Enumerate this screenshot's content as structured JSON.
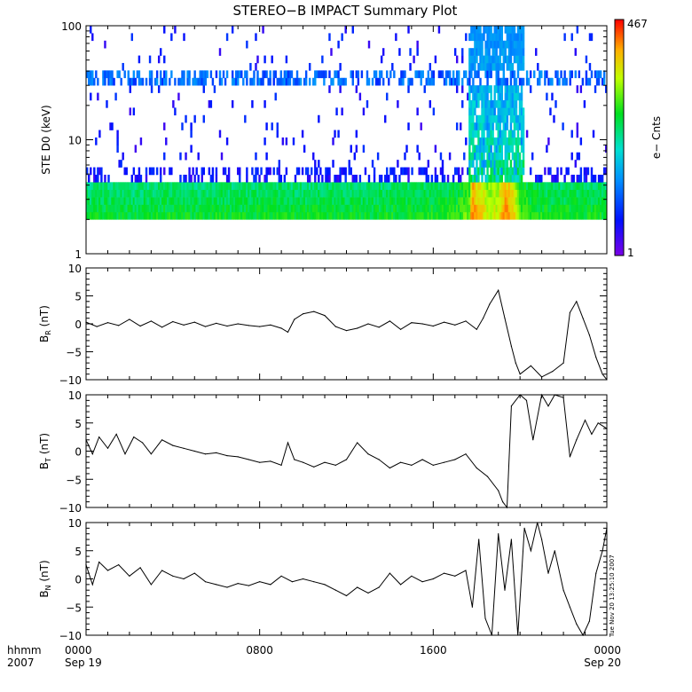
{
  "title": "STEREO−B IMPACT Summary Plot",
  "timestamp": "Tue Nov 20 13:25:10 2007",
  "colors": {
    "trace": "#000000",
    "axis": "#000000",
    "background": "#ffffff"
  },
  "chart_data": [
    {
      "type": "heatmap",
      "name": "electron-spectrogram",
      "ylabel": "STE D0 (keV)",
      "yscale": "log",
      "ylim": [
        1,
        100
      ],
      "yticks": [
        1,
        10,
        100
      ],
      "ytick_labels": [
        "1",
        "10",
        "100"
      ],
      "energy_range": [
        2,
        100
      ],
      "xlim": [
        0,
        24
      ],
      "colorbar": {
        "label": "e− Cnts",
        "min": 1,
        "max": 467,
        "min_label": "1",
        "max_label": "467"
      },
      "band_counts_low": [
        [
          0,
          35
        ],
        [
          1,
          38
        ],
        [
          2,
          36
        ],
        [
          3,
          38
        ],
        [
          4,
          40
        ],
        [
          5,
          37
        ],
        [
          6,
          40
        ],
        [
          7,
          38
        ],
        [
          8,
          39
        ],
        [
          9,
          40
        ],
        [
          10,
          38
        ],
        [
          11,
          40
        ],
        [
          12,
          39
        ],
        [
          13,
          37
        ],
        [
          14,
          40
        ],
        [
          15,
          40
        ],
        [
          16,
          42
        ],
        [
          17,
          44
        ],
        [
          17.7,
          70
        ],
        [
          17.8,
          330
        ],
        [
          18,
          200
        ],
        [
          18.5,
          110
        ],
        [
          19,
          120
        ],
        [
          19.3,
          250
        ],
        [
          19.5,
          230
        ],
        [
          20,
          60
        ],
        [
          20.5,
          45
        ],
        [
          21,
          42
        ],
        [
          22,
          40
        ],
        [
          23,
          42
        ],
        [
          24,
          40
        ]
      ]
    },
    {
      "type": "line",
      "name": "BR",
      "ylabel": "B_R (nT)",
      "ylabel_main": "B",
      "ylabel_sub": "R",
      "ylabel_unit": "(nT)",
      "ylim": [
        -10,
        10
      ],
      "yticks": [
        -10,
        -5,
        0,
        5,
        10
      ],
      "ytick_labels": [
        "−10",
        "−5",
        "0",
        "5",
        "10"
      ],
      "xlim": [
        0,
        24
      ],
      "x": [
        0,
        0.5,
        1,
        1.5,
        2,
        2.5,
        3,
        3.5,
        4,
        4.5,
        5,
        5.5,
        6,
        6.5,
        7,
        7.5,
        8,
        8.5,
        9,
        9.3,
        9.6,
        10,
        10.5,
        11,
        11.5,
        12,
        12.5,
        13,
        13.5,
        14,
        14.5,
        15,
        15.5,
        16,
        16.5,
        17,
        17.5,
        18,
        18.3,
        18.6,
        19,
        19.3,
        19.6,
        19.8,
        20,
        20.5,
        21,
        21.5,
        22,
        22.3,
        22.6,
        22.9,
        23.2,
        23.5,
        23.8,
        24
      ],
      "y": [
        0.3,
        -0.5,
        0.2,
        -0.3,
        0.8,
        -0.4,
        0.5,
        -0.6,
        0.4,
        -0.2,
        0.3,
        -0.5,
        0.1,
        -0.4,
        0.0,
        -0.3,
        -0.5,
        -0.2,
        -0.8,
        -1.5,
        0.8,
        1.8,
        2.2,
        1.5,
        -0.5,
        -1.2,
        -0.8,
        0.0,
        -0.6,
        0.5,
        -1.0,
        0.2,
        0.0,
        -0.4,
        0.3,
        -0.2,
        0.5,
        -1.0,
        1.0,
        3.5,
        6.0,
        1.0,
        -4.0,
        -7.0,
        -9.0,
        -7.5,
        -9.5,
        -8.5,
        -7.0,
        2.0,
        4.0,
        1.0,
        -2.0,
        -6.0,
        -9.0,
        -10.0
      ]
    },
    {
      "type": "line",
      "name": "BT",
      "ylabel": "B_T (nT)",
      "ylabel_main": "B",
      "ylabel_sub": "T",
      "ylabel_unit": "(nT)",
      "ylim": [
        -10,
        10
      ],
      "yticks": [
        -10,
        -5,
        0,
        5,
        10
      ],
      "ytick_labels": [
        "−10",
        "−5",
        "0",
        "5",
        "10"
      ],
      "xlim": [
        0,
        24
      ],
      "x": [
        0,
        0.3,
        0.6,
        1,
        1.4,
        1.8,
        2.2,
        2.6,
        3,
        3.5,
        4,
        4.5,
        5,
        5.5,
        6,
        6.5,
        7,
        7.5,
        8,
        8.5,
        9,
        9.3,
        9.6,
        10,
        10.5,
        11,
        11.5,
        12,
        12.5,
        13,
        13.5,
        14,
        14.5,
        15,
        15.5,
        16,
        16.5,
        17,
        17.5,
        18,
        18.5,
        19,
        19.2,
        19.4,
        19.6,
        20,
        20.3,
        20.6,
        21,
        21.3,
        21.6,
        22,
        22.3,
        22.6,
        23,
        23.3,
        23.6,
        24
      ],
      "y": [
        2.0,
        -0.5,
        2.5,
        0.5,
        3.0,
        -0.5,
        2.5,
        1.5,
        -0.5,
        2.0,
        1.0,
        0.5,
        0.0,
        -0.5,
        -0.3,
        -0.8,
        -1.0,
        -1.5,
        -2.0,
        -1.8,
        -2.5,
        1.5,
        -1.5,
        -2.0,
        -2.8,
        -2.0,
        -2.5,
        -1.5,
        1.5,
        -0.5,
        -1.5,
        -3.0,
        -2.0,
        -2.5,
        -1.5,
        -2.5,
        -2.0,
        -1.5,
        -0.5,
        -3.0,
        -4.5,
        -7.0,
        -9.0,
        -10.0,
        8.0,
        10.0,
        9.0,
        2.0,
        10.0,
        8.0,
        10.0,
        9.5,
        -1.0,
        2.0,
        5.5,
        3.0,
        5.0,
        4.0
      ]
    },
    {
      "type": "line",
      "name": "BN",
      "ylabel": "B_N (nT)",
      "ylabel_main": "B",
      "ylabel_sub": "N",
      "ylabel_unit": "(nT)",
      "ylim": [
        -10,
        10
      ],
      "yticks": [
        -10,
        -5,
        0,
        5,
        10
      ],
      "ytick_labels": [
        "−10",
        "−5",
        "0",
        "5",
        "10"
      ],
      "xlim": [
        0,
        24
      ],
      "x": [
        0,
        0.3,
        0.6,
        1,
        1.5,
        2,
        2.5,
        3,
        3.5,
        4,
        4.5,
        5,
        5.5,
        6,
        6.5,
        7,
        7.5,
        8,
        8.5,
        9,
        9.5,
        10,
        10.5,
        11,
        11.5,
        12,
        12.5,
        13,
        13.5,
        14,
        14.5,
        15,
        15.5,
        16,
        16.5,
        17,
        17.5,
        17.8,
        18.1,
        18.4,
        18.7,
        19,
        19.3,
        19.6,
        19.9,
        20.2,
        20.5,
        20.8,
        21,
        21.3,
        21.6,
        22,
        22.3,
        22.6,
        22.9,
        23.2,
        23.5,
        23.8,
        24
      ],
      "y": [
        2.5,
        -1.0,
        3.0,
        1.5,
        2.5,
        0.5,
        2.0,
        -1.0,
        1.5,
        0.5,
        0.0,
        1.0,
        -0.5,
        -1.0,
        -1.5,
        -0.8,
        -1.2,
        -0.5,
        -1.0,
        0.5,
        -0.5,
        0.0,
        -0.5,
        -1.0,
        -2.0,
        -3.0,
        -1.5,
        -2.5,
        -1.5,
        1.0,
        -1.0,
        0.5,
        -0.5,
        0.0,
        1.0,
        0.5,
        1.5,
        -5.0,
        7.0,
        -7.0,
        -10.0,
        8.0,
        -2.0,
        7.0,
        -10.0,
        9.0,
        5.0,
        10.0,
        7.0,
        1.0,
        5.0,
        -2.0,
        -5.0,
        -8.0,
        -10.0,
        -7.5,
        1.0,
        5.0,
        9.0
      ]
    }
  ],
  "xaxis": {
    "ticks": [
      0,
      8,
      16,
      24
    ],
    "tick_time_labels": [
      "0000",
      "0800",
      "1600",
      "0000"
    ],
    "date_labels": [
      "Sep 19",
      "",
      "",
      "Sep 20"
    ],
    "left_label_top": "hhmm",
    "left_label_bottom": "2007"
  }
}
